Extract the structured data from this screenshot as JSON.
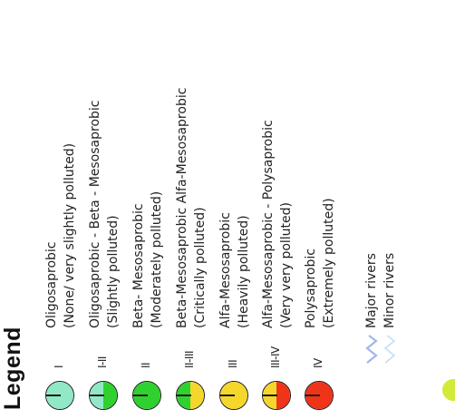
{
  "legend": {
    "title": "Legend",
    "classes": [
      {
        "code": "I",
        "lines": [
          "Oligosaprobic",
          "(None/ very slightly polluted)"
        ],
        "colors": [
          "#90e8c6",
          "#90e8c6"
        ]
      },
      {
        "code": "I-II",
        "lines": [
          "Oligosaprobic - Beta - Mesosaprobic",
          "(Slightly polluted)"
        ],
        "colors": [
          "#90e8c6",
          "#2fd12f"
        ]
      },
      {
        "code": "II",
        "lines": [
          "Beta- Mesosaprobic",
          "(Moderately polluted)"
        ],
        "colors": [
          "#2fd12f",
          "#2fd12f"
        ]
      },
      {
        "code": "II-III",
        "lines": [
          "Beta-Mesosaprobic  Alfa-Mesosaprobic",
          "(Critically polluted)"
        ],
        "colors": [
          "#2fd12f",
          "#f4d72a"
        ]
      },
      {
        "code": "III",
        "lines": [
          "Alfa-Mesosaprobic",
          "(Heavily polluted)"
        ],
        "colors": [
          "#f4d72a",
          "#f4d72a"
        ]
      },
      {
        "code": "III-IV",
        "lines": [
          "Alfa-Mesosaprobic - Polysaprobic",
          "(Very very polluted)"
        ],
        "colors": [
          "#f4d72a",
          "#ef3419"
        ]
      },
      {
        "code": "IV",
        "lines": [
          "Polysaprobic",
          "(Extremely polluted)"
        ],
        "colors": [
          "#ef3419",
          "#ef3419"
        ]
      }
    ],
    "rivers": [
      {
        "label": "Major rivers",
        "color": "#9fb8ea"
      },
      {
        "label": "Minor rivers",
        "color": "#c8dcf5"
      }
    ]
  }
}
